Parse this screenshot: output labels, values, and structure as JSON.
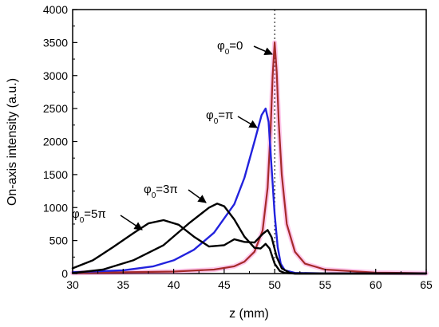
{
  "chart_data": {
    "type": "line",
    "xlabel": "z (mm)",
    "ylabel": "On-axis intensity (a.u.)",
    "xlim": [
      30,
      65
    ],
    "ylim": [
      0,
      4000
    ],
    "xticks": [
      30,
      35,
      40,
      45,
      50,
      55,
      60,
      65
    ],
    "yticks": [
      0,
      500,
      1000,
      1500,
      2000,
      2500,
      3000,
      3500,
      4000
    ],
    "grid": false,
    "reference_line_x": 50,
    "series": [
      {
        "color": "#ff66cc",
        "points": [
          [
            30,
            10
          ],
          [
            40,
            30
          ],
          [
            44,
            60
          ],
          [
            46,
            110
          ],
          [
            47,
            180
          ],
          [
            48,
            330
          ],
          [
            48.8,
            650
          ],
          [
            49.3,
            1300
          ],
          [
            49.6,
            2200
          ],
          [
            49.8,
            3000
          ],
          [
            50,
            3500
          ],
          [
            50.2,
            3050
          ],
          [
            50.4,
            2300
          ],
          [
            50.7,
            1500
          ],
          [
            51.2,
            750
          ],
          [
            52,
            330
          ],
          [
            53,
            150
          ],
          [
            55,
            60
          ],
          [
            60,
            15
          ],
          [
            65,
            5
          ]
        ]
      },
      {
        "color": "#a52a2a",
        "points": [
          [
            30,
            10
          ],
          [
            40,
            30
          ],
          [
            44,
            60
          ],
          [
            46,
            110
          ],
          [
            47,
            180
          ],
          [
            48,
            330
          ],
          [
            48.8,
            650
          ],
          [
            49.3,
            1300
          ],
          [
            49.6,
            2200
          ],
          [
            49.8,
            3000
          ],
          [
            50,
            3500
          ],
          [
            50.2,
            3050
          ],
          [
            50.4,
            2300
          ],
          [
            50.7,
            1500
          ],
          [
            51.2,
            750
          ],
          [
            52,
            330
          ],
          [
            53,
            150
          ],
          [
            55,
            60
          ],
          [
            60,
            15
          ],
          [
            65,
            5
          ]
        ]
      },
      {
        "color": "#2222dd",
        "points": [
          [
            30,
            20
          ],
          [
            35,
            50
          ],
          [
            38,
            110
          ],
          [
            40,
            200
          ],
          [
            42,
            360
          ],
          [
            44,
            620
          ],
          [
            46,
            1050
          ],
          [
            47,
            1450
          ],
          [
            48,
            2000
          ],
          [
            48.7,
            2400
          ],
          [
            49.1,
            2500
          ],
          [
            49.4,
            2300
          ],
          [
            49.7,
            1600
          ],
          [
            50,
            900
          ],
          [
            50.3,
            400
          ],
          [
            50.6,
            150
          ],
          [
            51,
            50
          ],
          [
            52,
            10
          ],
          [
            55,
            3
          ],
          [
            65,
            0
          ]
        ]
      },
      {
        "color": "#000000",
        "points": [
          [
            30,
            8
          ],
          [
            33,
            60
          ],
          [
            36,
            200
          ],
          [
            39,
            430
          ],
          [
            41.5,
            760
          ],
          [
            43.5,
            1000
          ],
          [
            44.3,
            1060
          ],
          [
            45,
            1020
          ],
          [
            46,
            820
          ],
          [
            47,
            560
          ],
          [
            48,
            390
          ],
          [
            48.6,
            380
          ],
          [
            49.1,
            450
          ],
          [
            49.5,
            380
          ],
          [
            50,
            150
          ],
          [
            50.5,
            40
          ],
          [
            51,
            10
          ],
          [
            52,
            0
          ],
          [
            55,
            0
          ],
          [
            65,
            0
          ]
        ]
      },
      {
        "color": "#000000",
        "points": [
          [
            30,
            80
          ],
          [
            32,
            200
          ],
          [
            34,
            400
          ],
          [
            36,
            610
          ],
          [
            37.5,
            760
          ],
          [
            39,
            810
          ],
          [
            40.5,
            740
          ],
          [
            42,
            560
          ],
          [
            43.5,
            410
          ],
          [
            45,
            430
          ],
          [
            46,
            520
          ],
          [
            47,
            480
          ],
          [
            48,
            470
          ],
          [
            48.8,
            600
          ],
          [
            49.3,
            660
          ],
          [
            49.7,
            550
          ],
          [
            50.2,
            250
          ],
          [
            50.7,
            80
          ],
          [
            51.5,
            10
          ],
          [
            52,
            0
          ],
          [
            65,
            0
          ]
        ]
      }
    ],
    "annotations": [
      {
        "base": "φ",
        "sub": "0",
        "rest": "=0"
      },
      {
        "base": "φ",
        "sub": "0",
        "rest": "=π"
      },
      {
        "base": "φ",
        "sub": "0",
        "rest": "=3π"
      },
      {
        "base": "φ",
        "sub": "0",
        "rest": "=5π"
      }
    ]
  }
}
